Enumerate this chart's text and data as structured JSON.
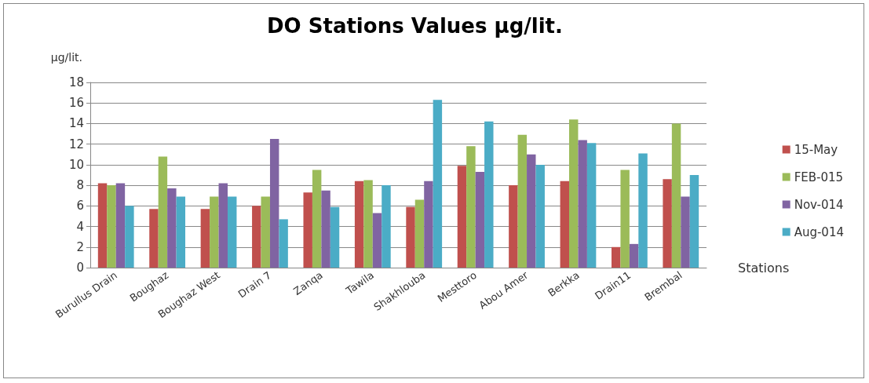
{
  "chart_data": {
    "type": "bar",
    "title": "DO Stations Values µg/lit.",
    "ylabel": "µg/lit.",
    "xlabel": "Stations",
    "categories": [
      "Burullus Drain",
      "Boughaz",
      "Boughaz West",
      "Drain 7",
      "Zanqa",
      "Tawila",
      "Shakhlouba",
      "Mesttoro",
      "Abou Amer",
      "Berkka",
      "Drain11",
      "Brembal"
    ],
    "series": [
      {
        "name": "15-May",
        "color": "#c0504d",
        "values": [
          8.2,
          5.7,
          5.7,
          6.0,
          7.3,
          8.4,
          5.9,
          9.9,
          8.0,
          8.4,
          2.0,
          8.6
        ]
      },
      {
        "name": "FEB-015",
        "color": "#9bbb59",
        "values": [
          8.0,
          10.8,
          6.9,
          6.9,
          9.5,
          8.5,
          6.6,
          11.8,
          12.9,
          14.4,
          9.5,
          14.0
        ]
      },
      {
        "name": "Nov-014",
        "color": "#8064a2",
        "values": [
          8.2,
          7.7,
          8.2,
          12.5,
          7.5,
          5.3,
          8.4,
          9.3,
          11.0,
          12.4,
          2.3,
          6.9
        ]
      },
      {
        "name": "Aug-014",
        "color": "#4bacc6",
        "values": [
          6.0,
          6.9,
          6.9,
          4.7,
          5.9,
          8.0,
          16.3,
          14.2,
          10.0,
          12.1,
          11.1,
          9.0
        ]
      }
    ],
    "ylim": [
      0,
      18
    ],
    "yticks": [
      0,
      2,
      4,
      6,
      8,
      10,
      12,
      14,
      16,
      18
    ],
    "grid": "y",
    "legend": "right"
  }
}
